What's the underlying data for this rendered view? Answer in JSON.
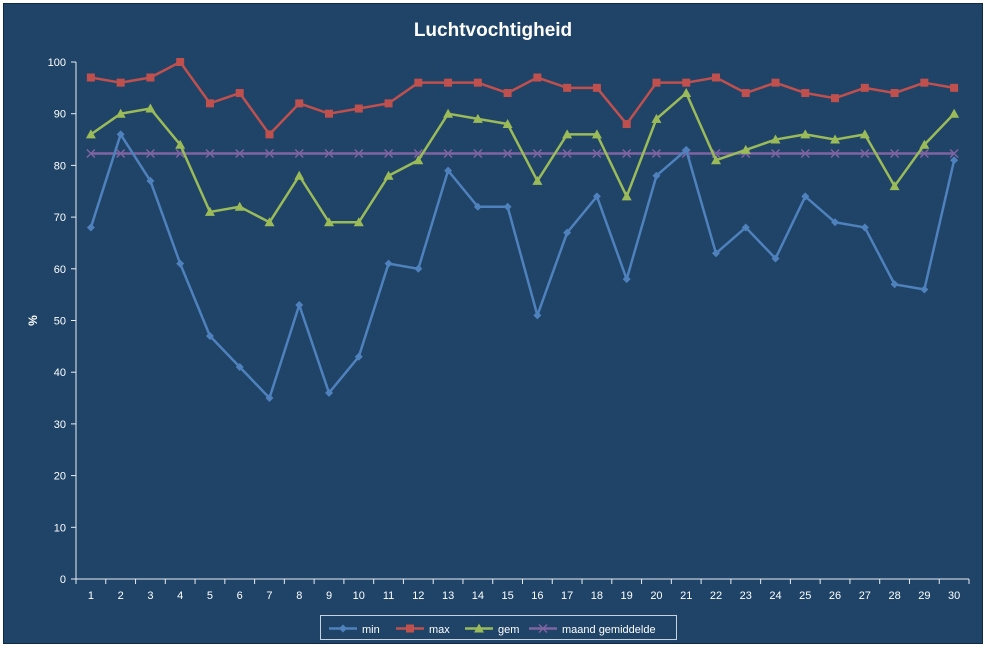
{
  "chart_data": {
    "type": "line",
    "title": "Luchtvochtigheid",
    "xlabel": "",
    "ylabel": "%",
    "ylim": [
      0,
      100
    ],
    "yticks": [
      "0",
      "10",
      "20",
      "30",
      "40",
      "50",
      "60",
      "70",
      "80",
      "90",
      "100"
    ],
    "categories": [
      "1",
      "2",
      "3",
      "4",
      "5",
      "6",
      "7",
      "8",
      "9",
      "10",
      "11",
      "12",
      "13",
      "14",
      "15",
      "16",
      "17",
      "18",
      "19",
      "20",
      "21",
      "22",
      "23",
      "24",
      "25",
      "26",
      "27",
      "28",
      "29",
      "30"
    ],
    "legend_position": "bottom",
    "grid": false,
    "series": [
      {
        "name": "min",
        "color": "#4f81bd",
        "marker": "diamond",
        "values": [
          68,
          86,
          77,
          61,
          47,
          41,
          35,
          53,
          36,
          43,
          61,
          60,
          79,
          72,
          72,
          51,
          67,
          74,
          58,
          78,
          83,
          63,
          68,
          62,
          74,
          69,
          68,
          57,
          56,
          81
        ]
      },
      {
        "name": "max",
        "color": "#c0504d",
        "marker": "square",
        "values": [
          97,
          96,
          97,
          100,
          92,
          94,
          86,
          92,
          90,
          91,
          92,
          96,
          96,
          96,
          94,
          97,
          95,
          95,
          88,
          96,
          96,
          97,
          94,
          96,
          94,
          93,
          95,
          94,
          96,
          95
        ]
      },
      {
        "name": "gem",
        "color": "#9bbb59",
        "marker": "triangle",
        "values": [
          86,
          90,
          91,
          84,
          71,
          72,
          69,
          78,
          69,
          69,
          78,
          81,
          90,
          89,
          88,
          77,
          86,
          86,
          74,
          89,
          94,
          81,
          83,
          85,
          86,
          85,
          86,
          76,
          84,
          90
        ]
      },
      {
        "name": "maand gemiddelde",
        "color": "#8064a2",
        "marker": "x",
        "values": [
          82.3,
          82.3,
          82.3,
          82.3,
          82.3,
          82.3,
          82.3,
          82.3,
          82.3,
          82.3,
          82.3,
          82.3,
          82.3,
          82.3,
          82.3,
          82.3,
          82.3,
          82.3,
          82.3,
          82.3,
          82.3,
          82.3,
          82.3,
          82.3,
          82.3,
          82.3,
          82.3,
          82.3,
          82.3,
          82.3
        ]
      }
    ]
  }
}
